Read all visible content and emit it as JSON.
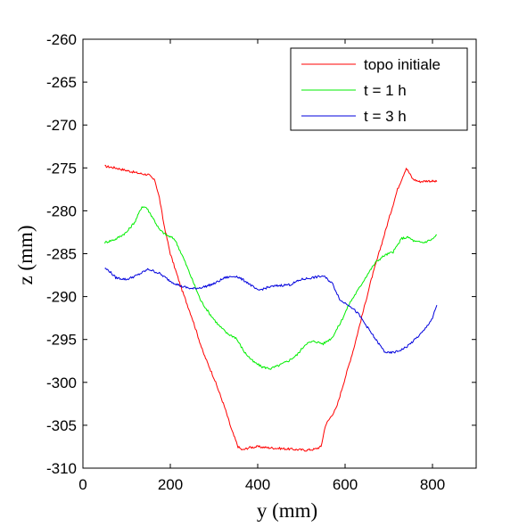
{
  "chart_data": {
    "type": "line",
    "xlabel": "y (mm)",
    "ylabel": "z (mm)",
    "xlim": [
      0,
      900
    ],
    "ylim": [
      -310,
      -260
    ],
    "xticks": [
      0,
      200,
      400,
      600,
      800
    ],
    "yticks": [
      -310,
      -305,
      -300,
      -295,
      -290,
      -285,
      -280,
      -275,
      -270,
      -265,
      -260
    ],
    "grid": false,
    "legend_position": "top-right",
    "series": [
      {
        "name": "topo initiale",
        "color": "#ff0000",
        "x": [
          50,
          75,
          100,
          125,
          150,
          165,
          175,
          185,
          200,
          225,
          250,
          275,
          300,
          325,
          340,
          355,
          365,
          380,
          400,
          420,
          450,
          480,
          510,
          530,
          545,
          555,
          565,
          580,
          600,
          620,
          640,
          660,
          680,
          700,
          720,
          740,
          755,
          770,
          790,
          810
        ],
        "y": [
          -274.8,
          -275.0,
          -275.3,
          -275.6,
          -275.8,
          -276.5,
          -278.5,
          -281.5,
          -285.0,
          -289.0,
          -292.5,
          -296.5,
          -299.5,
          -303.0,
          -305.5,
          -307.5,
          -307.9,
          -307.6,
          -307.5,
          -307.6,
          -307.7,
          -307.8,
          -307.9,
          -307.8,
          -307.5,
          -305.0,
          -304.2,
          -303.0,
          -299.5,
          -296.0,
          -292.0,
          -288.0,
          -284.5,
          -281.0,
          -277.5,
          -275.0,
          -276.3,
          -276.6,
          -276.5,
          -276.6
        ]
      },
      {
        "name": "t = 1 h",
        "color": "#00ee00",
        "x": [
          50,
          75,
          100,
          120,
          135,
          145,
          160,
          175,
          190,
          210,
          230,
          250,
          270,
          290,
          310,
          330,
          350,
          370,
          390,
          410,
          430,
          450,
          470,
          490,
          510,
          530,
          550,
          570,
          590,
          610,
          630,
          650,
          670,
          690,
          710,
          730,
          745,
          760,
          780,
          800,
          810
        ],
        "y": [
          -283.7,
          -283.3,
          -282.5,
          -281.2,
          -279.5,
          -279.6,
          -280.8,
          -282.2,
          -282.8,
          -283.3,
          -285.5,
          -288.0,
          -290.5,
          -292.0,
          -293.3,
          -294.3,
          -294.8,
          -296.5,
          -297.6,
          -298.2,
          -298.4,
          -298.0,
          -297.5,
          -296.8,
          -295.5,
          -295.2,
          -295.5,
          -294.8,
          -293.0,
          -290.8,
          -289.2,
          -287.5,
          -286.0,
          -285.2,
          -284.8,
          -283.2,
          -283.1,
          -283.6,
          -283.7,
          -283.3,
          -282.8
        ]
      },
      {
        "name": "t = 3 h",
        "color": "#0000dd",
        "x": [
          50,
          60,
          75,
          100,
          125,
          150,
          175,
          200,
          225,
          250,
          275,
          300,
          325,
          350,
          375,
          400,
          425,
          450,
          475,
          500,
          525,
          550,
          570,
          590,
          610,
          630,
          650,
          670,
          690,
          700,
          720,
          740,
          760,
          780,
          800,
          810
        ],
        "y": [
          -286.7,
          -287.0,
          -287.8,
          -288.0,
          -287.5,
          -286.8,
          -287.3,
          -288.2,
          -288.8,
          -289.1,
          -288.9,
          -288.5,
          -287.8,
          -287.6,
          -288.3,
          -289.3,
          -288.9,
          -288.7,
          -288.6,
          -288.0,
          -287.8,
          -287.6,
          -288.4,
          -290.5,
          -291.0,
          -292.0,
          -293.5,
          -295.0,
          -296.4,
          -296.6,
          -296.4,
          -295.9,
          -295.0,
          -294.0,
          -292.5,
          -291.0
        ]
      }
    ]
  }
}
